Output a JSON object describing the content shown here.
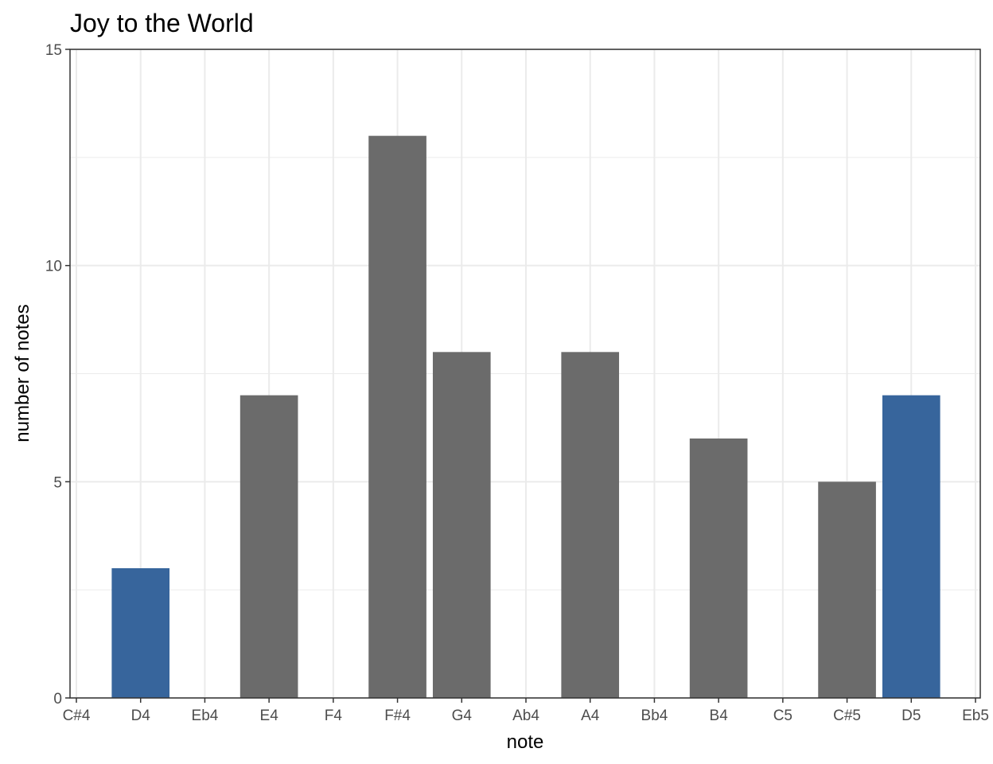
{
  "chart_data": {
    "type": "bar",
    "title": "Joy to the World",
    "xlabel": "note",
    "ylabel": "number of notes",
    "categories": [
      "C#4",
      "D4",
      "Eb4",
      "E4",
      "F4",
      "F#4",
      "G4",
      "Ab4",
      "A4",
      "Bb4",
      "B4",
      "C5",
      "C#5",
      "D5",
      "Eb5"
    ],
    "values": [
      0,
      3,
      0,
      7,
      0,
      13,
      8,
      0,
      8,
      0,
      6,
      0,
      5,
      7,
      0
    ],
    "highlighted": [
      "D4",
      "D5"
    ],
    "colors": {
      "default": "#6b6b6b",
      "highlight": "#37659c"
    },
    "ylim": [
      0,
      15
    ],
    "yticks": [
      0,
      5,
      10,
      15
    ],
    "grid": true,
    "legend": "none"
  }
}
